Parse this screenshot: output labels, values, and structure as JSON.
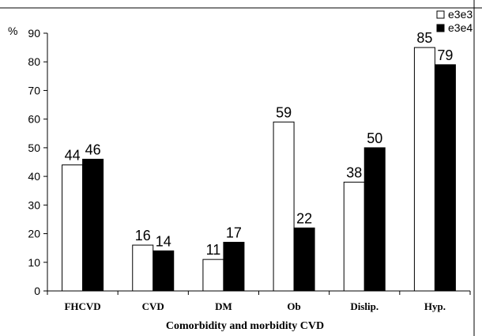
{
  "chart_data": {
    "type": "bar",
    "categories": [
      "FHCVD",
      "CVD",
      "DM",
      "Ob",
      "Dislip.",
      "Hyp."
    ],
    "series": [
      {
        "name": "e3e3",
        "values": [
          44,
          16,
          11,
          59,
          38,
          85
        ],
        "color": "#ffffff"
      },
      {
        "name": "e3e4",
        "values": [
          46,
          14,
          17,
          22,
          50,
          79
        ],
        "color": "#000000"
      }
    ],
    "ylim": [
      0,
      90
    ],
    "yticks": [
      0,
      10,
      20,
      30,
      40,
      50,
      60,
      70,
      80,
      90
    ],
    "ylabel": "%",
    "xlabel": "Comorbidity and morbidity CVD",
    "title": "",
    "legend_position": "top-right",
    "grid": false
  }
}
